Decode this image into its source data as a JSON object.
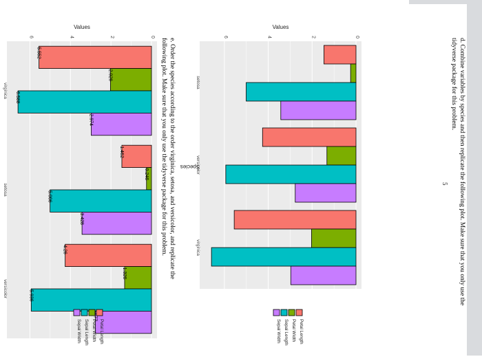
{
  "page": {
    "page_number": "5",
    "part_d": "d. Combine variables by species and then replicate the following plot. Make sure that you only use the tidyverse package for this problem.",
    "part_e": "e. Order the species according to the order virginica, setosa, and versicolor, and replicate the following plot. Make sure that you only use the tidyverse package for this problem."
  },
  "legend_items": [
    "Petal Length",
    "Petal Width",
    "Sepal Length",
    "Sepal Width"
  ],
  "colors": {
    "Petal Length": "#F8766D",
    "Petal Width": "#7CAE00",
    "Sepal Length": "#00BFC4",
    "Sepal Width": "#C77CFF",
    "panel": "#ebebeb",
    "grid": "#ffffff"
  },
  "chart_data": [
    {
      "type": "bar",
      "orientation": "rotated page (vertical bars rotated 90°)",
      "categories": [
        "setosa",
        "versicolor",
        "virginica"
      ],
      "xlabel": "Species",
      "ylabel": "Values",
      "ylim": [
        0,
        7
      ],
      "yticks": [
        "0",
        "2",
        "4",
        "6"
      ],
      "series": [
        {
          "name": "Petal Length",
          "values": [
            1.462,
            4.26,
            5.552
          ]
        },
        {
          "name": "Petal Width",
          "values": [
            0.246,
            1.326,
            2.026
          ]
        },
        {
          "name": "Sepal Length",
          "values": [
            5.006,
            5.936,
            6.588
          ]
        },
        {
          "name": "Sepal Width",
          "values": [
            3.428,
            2.77,
            2.974
          ]
        }
      ],
      "legend": "right"
    },
    {
      "type": "bar",
      "orientation": "rotated page (vertical bars rotated 90°)",
      "categories": [
        "virginica",
        "setosa",
        "versicolor"
      ],
      "xlabel": "",
      "ylabel": "Values",
      "ylim": [
        0,
        7
      ],
      "yticks": [
        "0",
        "2",
        "4",
        "6"
      ],
      "series": [
        {
          "name": "Petal Length",
          "values": [
            5.552,
            1.462,
            4.26
          ],
          "labels": [
            "5.552",
            "1.462",
            "4.26"
          ]
        },
        {
          "name": "Petal Width",
          "values": [
            2.026,
            0.246,
            1.326
          ],
          "labels": [
            "2.026",
            "0.246",
            "1.326"
          ]
        },
        {
          "name": "Sepal Length",
          "values": [
            6.588,
            5.006,
            5.936
          ],
          "labels": [
            "6.588",
            "5.006",
            "5.936"
          ]
        },
        {
          "name": "Sepal Width",
          "values": [
            2.974,
            3.428,
            2.77
          ],
          "labels": [
            "2.974",
            "3.428",
            "2.77"
          ]
        }
      ],
      "legend": "right"
    }
  ]
}
